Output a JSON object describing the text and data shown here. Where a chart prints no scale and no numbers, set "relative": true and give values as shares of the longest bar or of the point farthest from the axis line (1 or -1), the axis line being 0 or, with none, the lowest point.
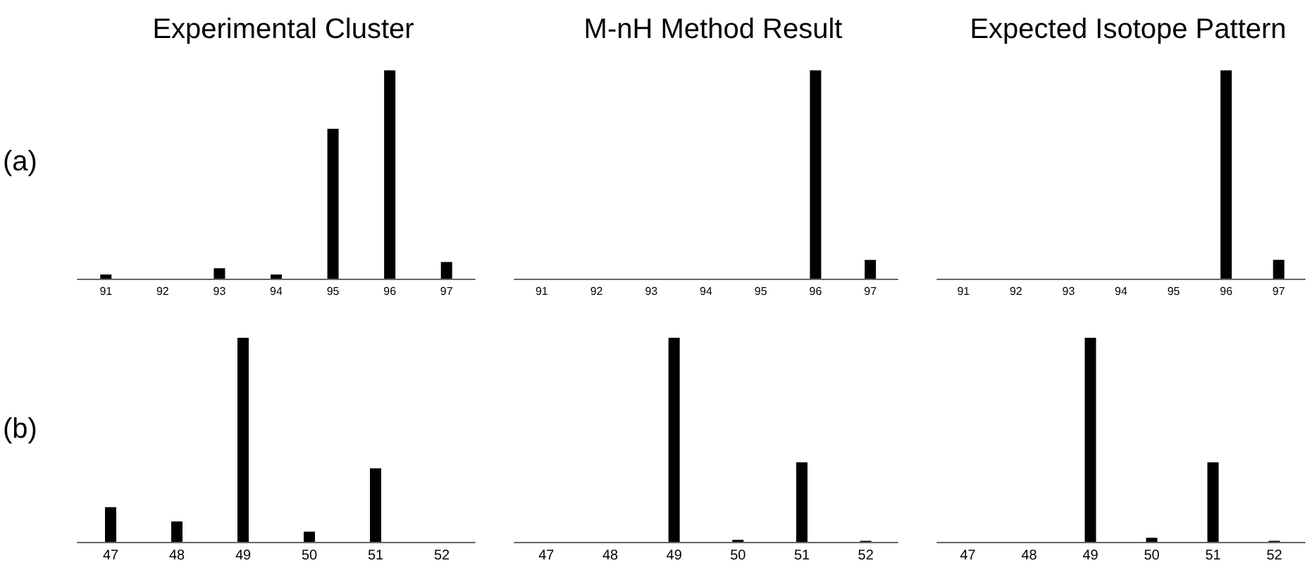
{
  "chart_data": [
    {
      "type": "bar",
      "title": "Experimental Cluster",
      "annotations": [
        "(a)"
      ],
      "relative": true,
      "categories": [
        "91",
        "92",
        "93",
        "94",
        "95",
        "96",
        "97"
      ],
      "color": "#000000",
      "values": [
        0.02,
        0,
        0.05,
        0.02,
        0.72,
        1,
        0.08
      ]
    },
    {
      "type": "bar",
      "title": "M-nH Method Result",
      "relative": true,
      "categories": [
        "91",
        "92",
        "93",
        "94",
        "95",
        "96",
        "97"
      ],
      "color": "#000000",
      "values": [
        0,
        0,
        0,
        0,
        0,
        1,
        0.09
      ]
    },
    {
      "type": "bar",
      "title": "Expected Isotope Pattern",
      "relative": true,
      "categories": [
        "91",
        "92",
        "93",
        "94",
        "95",
        "96",
        "97"
      ],
      "color": "#000000",
      "values": [
        0,
        0,
        0,
        0,
        0,
        1,
        0.09
      ]
    },
    {
      "type": "bar",
      "annotations": [
        "(b)"
      ],
      "relative": true,
      "categories": [
        "47",
        "48",
        "49",
        "50",
        "51",
        "52"
      ],
      "color": "#000000",
      "values": [
        0.17,
        0.1,
        1,
        0.05,
        0.36,
        0
      ]
    },
    {
      "type": "bar",
      "relative": true,
      "categories": [
        "47",
        "48",
        "49",
        "50",
        "51",
        "52"
      ],
      "color": "#000000",
      "values": [
        0,
        0,
        1,
        0.01,
        0.39,
        0.005
      ]
    },
    {
      "type": "bar",
      "relative": true,
      "categories": [
        "47",
        "48",
        "49",
        "50",
        "51",
        "52"
      ],
      "color": "#000000",
      "values": [
        0,
        0,
        1,
        0.02,
        0.39,
        0.005
      ]
    }
  ]
}
